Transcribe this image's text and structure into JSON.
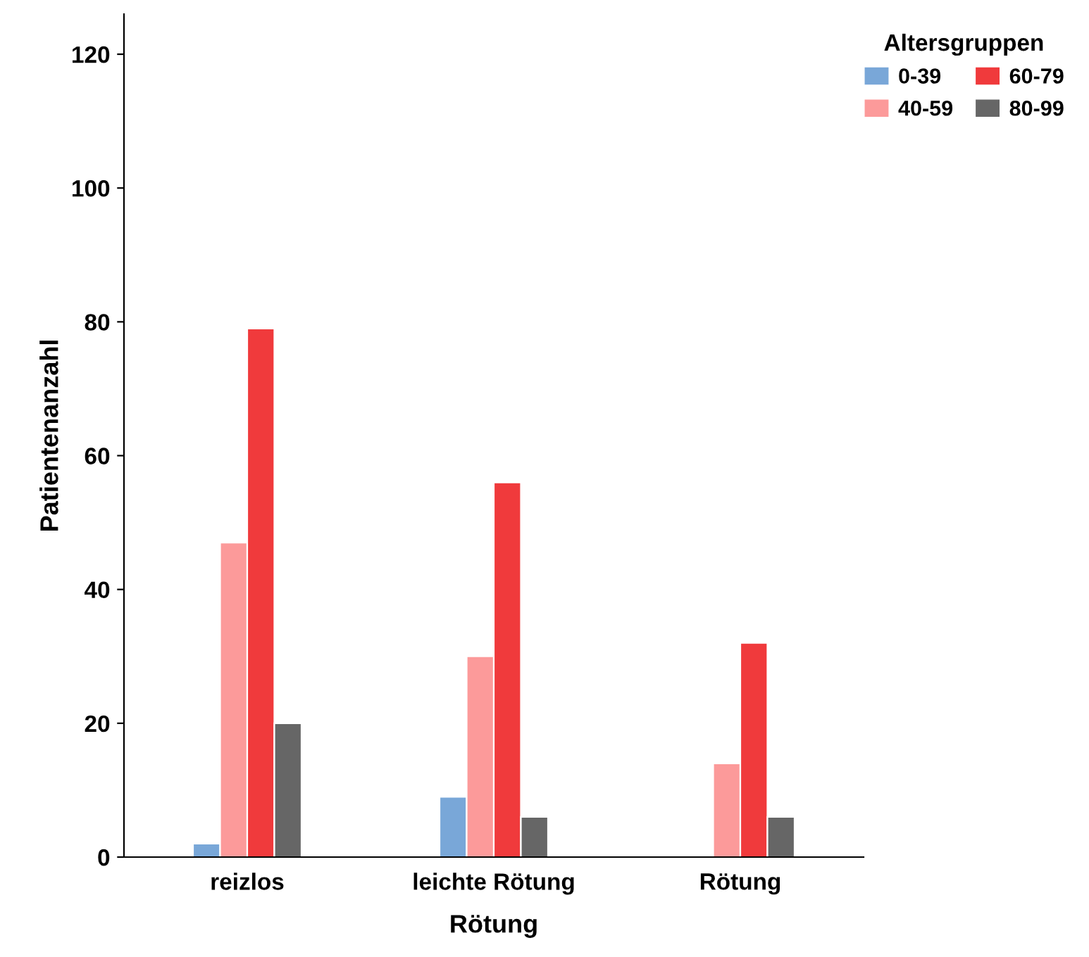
{
  "chart_data": {
    "type": "bar",
    "xlabel": "Rötung",
    "ylabel": "Patientenanzahl",
    "legend_title": "Altersgruppen",
    "categories": [
      "reizlos",
      "leichte Rötung",
      "Rötung"
    ],
    "series": [
      {
        "name": "0-39",
        "color": "#79a7d8",
        "values": [
          2,
          9,
          null
        ]
      },
      {
        "name": "40-59",
        "color": "#fc9a9a",
        "values": [
          47,
          30,
          14
        ]
      },
      {
        "name": "60-79",
        "color": "#f03a3c",
        "values": [
          79,
          56,
          32
        ]
      },
      {
        "name": "80-99",
        "color": "#666666",
        "values": [
          20,
          6,
          6
        ]
      }
    ],
    "ylim": [
      0,
      126
    ],
    "yticks": [
      0,
      20,
      40,
      60,
      80,
      100,
      120
    ],
    "grid": false,
    "legend": "top right"
  }
}
